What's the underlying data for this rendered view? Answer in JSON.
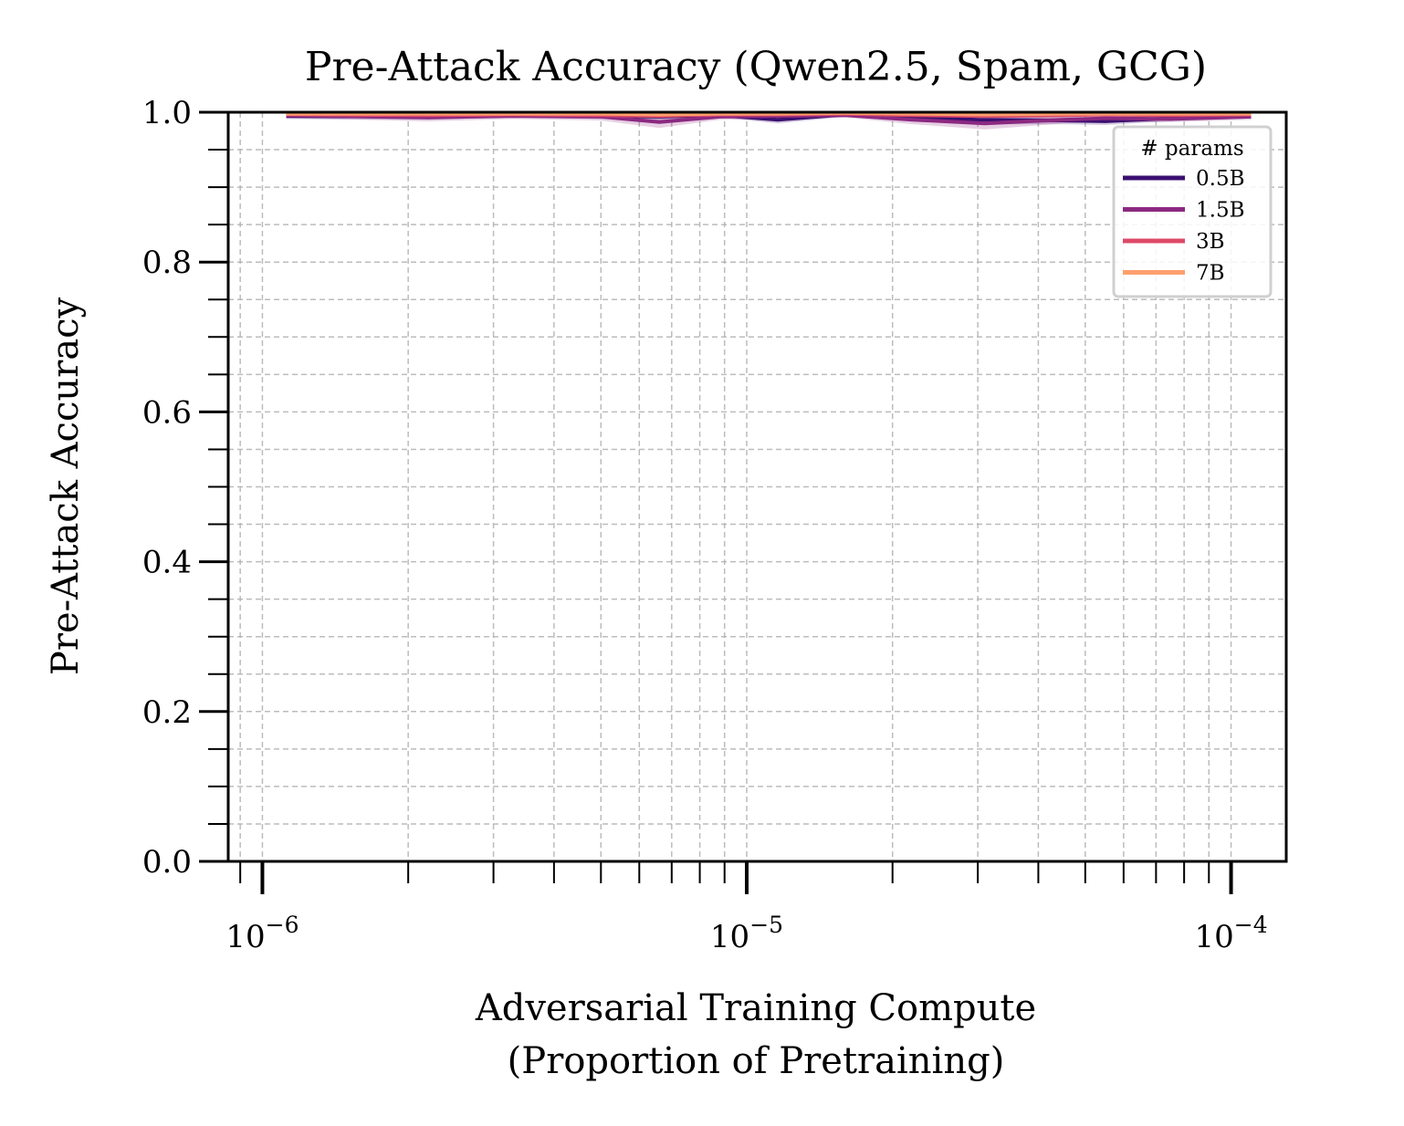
{
  "chart_data": {
    "type": "line",
    "title": "Pre-Attack Accuracy (Qwen2.5, Spam, GCG)",
    "xlabel_lines": [
      "Adversarial Training Compute",
      "(Proportion of Pretraining)"
    ],
    "ylabel": "Pre-Attack Accuracy",
    "xscale": "log",
    "xlim": [
      8.5e-07,
      0.00013
    ],
    "ylim": [
      0.0,
      1.0
    ],
    "grid": true,
    "x_ticks": [
      {
        "value": 1e-06,
        "base": "10",
        "exp": "−6"
      },
      {
        "value": 1e-05,
        "base": "10",
        "exp": "−5"
      },
      {
        "value": 0.0001,
        "base": "10",
        "exp": "−4"
      }
    ],
    "y_ticks": [
      {
        "value": 0.0,
        "label": "0.0"
      },
      {
        "value": 0.2,
        "label": "0.2"
      },
      {
        "value": 0.4,
        "label": "0.4"
      },
      {
        "value": 0.6,
        "label": "0.6"
      },
      {
        "value": 0.8,
        "label": "0.8"
      },
      {
        "value": 1.0,
        "label": "1.0"
      }
    ],
    "legend": {
      "title": "# params",
      "position": "upper right"
    },
    "series": [
      {
        "name": "0.5B",
        "color": "#3b0f70",
        "x": [
          1.12e-06,
          2.2e-06,
          3.3e-06,
          5e-06,
          6.6e-06,
          8.8e-06,
          1.16e-05,
          1.6e-05,
          2.2e-05,
          3e-05,
          4.5e-05,
          5.5e-05,
          7.5e-05,
          0.00011
        ],
        "y": [
          0.995,
          0.994,
          0.996,
          0.995,
          0.994,
          0.996,
          0.99,
          0.997,
          0.993,
          0.99,
          0.989,
          0.988,
          0.992,
          0.995
        ],
        "band": [
          0.004,
          0.004,
          0.003,
          0.004,
          0.005,
          0.003,
          0.005,
          0.003,
          0.005,
          0.006,
          0.005,
          0.005,
          0.004,
          0.003
        ]
      },
      {
        "name": "1.5B",
        "color": "#8c2981",
        "x": [
          1.12e-06,
          2.2e-06,
          3.3e-06,
          5e-06,
          6.6e-06,
          8.8e-06,
          1.16e-05,
          1.6e-05,
          2.2e-05,
          3.1e-05,
          4.5e-05,
          5.5e-05,
          7.5e-05,
          0.00011
        ],
        "y": [
          0.996,
          0.993,
          0.995,
          0.994,
          0.987,
          0.994,
          0.995,
          0.996,
          0.99,
          0.985,
          0.99,
          0.992,
          0.991,
          0.994
        ],
        "band": [
          0.004,
          0.005,
          0.004,
          0.005,
          0.008,
          0.004,
          0.004,
          0.003,
          0.006,
          0.008,
          0.005,
          0.005,
          0.004,
          0.004
        ]
      },
      {
        "name": "3B",
        "color": "#de4968",
        "x": [
          1.12e-06,
          2.2e-06,
          3.3e-06,
          5e-06,
          6.6e-06,
          8.8e-06,
          1.16e-05,
          1.6e-05,
          2.2e-05,
          3.1e-05,
          4.5e-05,
          5.5e-05,
          7.5e-05,
          0.00011
        ],
        "y": [
          0.997,
          0.996,
          0.997,
          0.996,
          0.995,
          0.997,
          0.997,
          0.998,
          0.996,
          0.995,
          0.996,
          0.997,
          0.996,
          0.997
        ],
        "band": [
          0.002,
          0.002,
          0.002,
          0.002,
          0.003,
          0.002,
          0.002,
          0.001,
          0.002,
          0.003,
          0.002,
          0.002,
          0.002,
          0.002
        ]
      },
      {
        "name": "7B",
        "color": "#fe9f6d",
        "x": [
          1.12e-06,
          2.2e-06,
          3.3e-06,
          5e-06,
          6.6e-06,
          8.8e-06,
          1.16e-05,
          1.6e-05,
          2.2e-05,
          3.1e-05,
          4.5e-05,
          5.5e-05,
          7.5e-05,
          0.00011
        ],
        "y": [
          0.998,
          0.998,
          0.998,
          0.998,
          0.997,
          0.998,
          0.998,
          0.999,
          0.998,
          0.997,
          0.998,
          0.998,
          0.998,
          0.998
        ],
        "band": [
          0.001,
          0.001,
          0.001,
          0.001,
          0.002,
          0.001,
          0.001,
          0.001,
          0.001,
          0.002,
          0.001,
          0.001,
          0.001,
          0.001
        ]
      }
    ]
  }
}
